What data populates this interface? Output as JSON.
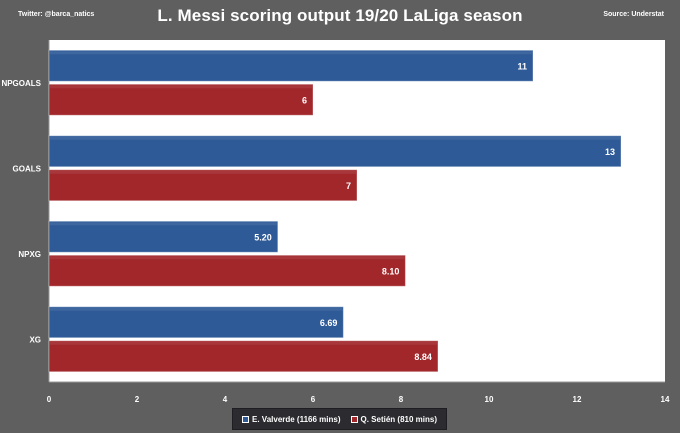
{
  "header": {
    "title": "L. Messi scoring output 19/20 LaLiga season",
    "left_note": "Twitter: @barca_natics",
    "right_note": "Source: Understat"
  },
  "chart_data": {
    "type": "bar",
    "orientation": "horizontal",
    "title": "L. Messi scoring output 19/20 LaLiga season",
    "categories": [
      "NPGOALS",
      "GOALS",
      "NPXG",
      "XG"
    ],
    "series": [
      {
        "name": "E. Valverde (1166 mins)",
        "values": [
          11,
          13,
          5.2,
          6.69
        ],
        "labels": [
          "11",
          "13",
          "5.20",
          "6.69"
        ],
        "color": "#2e5a97"
      },
      {
        "name": "Q. Setién (810 mins)",
        "values": [
          6,
          7,
          8.1,
          8.84
        ],
        "labels": [
          "6",
          "7",
          "8.10",
          "8.84"
        ],
        "color": "#a1272b"
      }
    ],
    "xlim": [
      0,
      14
    ],
    "xticks": [
      "0",
      "2",
      "4",
      "6",
      "8",
      "10",
      "12",
      "14"
    ],
    "grid": false,
    "legend_position": "bottom-center"
  },
  "colors": {
    "background": "#5f5f5f",
    "plot_background": "#ffffff",
    "valverde": "#2e5a97",
    "setien": "#a1272b",
    "legend_background": "#2b2b30"
  }
}
